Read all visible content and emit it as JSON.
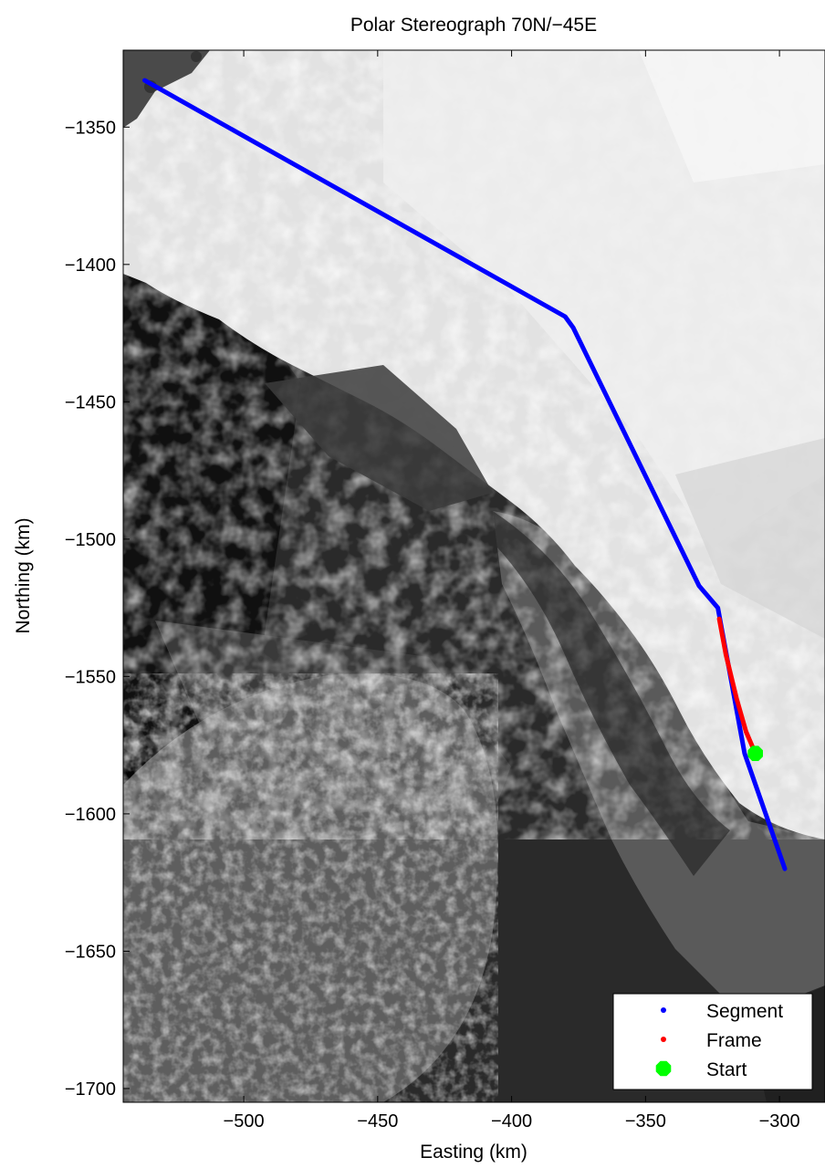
{
  "title": "Polar Stereograph 70N/−45E",
  "chart_data": {
    "type": "line",
    "title": "Polar Stereograph 70N/−45E",
    "xlabel": "Easting (km)",
    "ylabel": "Northing (km)",
    "xlim": [
      -545,
      -283
    ],
    "ylim": [
      -1705,
      -1322
    ],
    "xticks": [
      -500,
      -450,
      -400,
      -350,
      -300
    ],
    "xtick_labels": [
      "−500",
      "−450",
      "−400",
      "−350",
      "−300"
    ],
    "yticks": [
      -1350,
      -1400,
      -1450,
      -1500,
      -1550,
      -1600,
      -1650,
      -1700
    ],
    "ytick_labels": [
      "−1350",
      "−1400",
      "−1450",
      "−1500",
      "−1550",
      "−1600",
      "−1650",
      "−1700"
    ],
    "grid": false,
    "legend_position": "bottom-right",
    "series": [
      {
        "name": "Segment",
        "color": "#0000ff",
        "x": [
          -537,
          -380,
          -377,
          -330,
          -323,
          -313,
          -298
        ],
        "y": [
          -1333,
          -1419,
          -1423,
          -1517,
          -1525,
          -1578,
          -1620
        ]
      },
      {
        "name": "Frame",
        "color": "#ff0000",
        "x": [
          -322.5,
          -320,
          -316,
          -312.5,
          -309
        ],
        "y": [
          -1529,
          -1542,
          -1558,
          -1570,
          -1578
        ]
      },
      {
        "name": "Start",
        "color": "#00ff00",
        "marker": "octagon",
        "x": [
          -309
        ],
        "y": [
          -1578
        ]
      }
    ]
  }
}
